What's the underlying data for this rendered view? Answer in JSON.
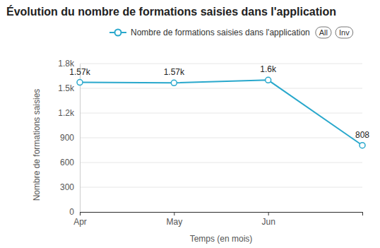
{
  "chart_data": {
    "type": "line",
    "title": "Évolution du nombre de formations saisies dans l'application",
    "x_label": "Temps (en mois)",
    "y_label": "Nombre de formations saisies",
    "categories": [
      "Apr",
      "May",
      "Jun",
      null
    ],
    "series": [
      {
        "name": "Nombre de formations saisies dans l'application",
        "color": "#29a8cc",
        "marker": "circle",
        "values": [
          1572,
          1566,
          1600,
          808
        ],
        "value_labels": [
          "1.57k",
          "1.57k",
          "1.6k",
          "808"
        ]
      }
    ],
    "ylim": [
      0,
      1800
    ],
    "yticks": [
      0,
      300,
      600,
      900,
      {
        "value": 1200,
        "label": "1.2k"
      },
      {
        "value": 1500,
        "label": "1.5k"
      },
      {
        "value": 1800,
        "label": "1.8k"
      }
    ],
    "grid": true,
    "data_labels": true,
    "legend": "top",
    "annotations": [
      "All",
      "Inv"
    ]
  }
}
